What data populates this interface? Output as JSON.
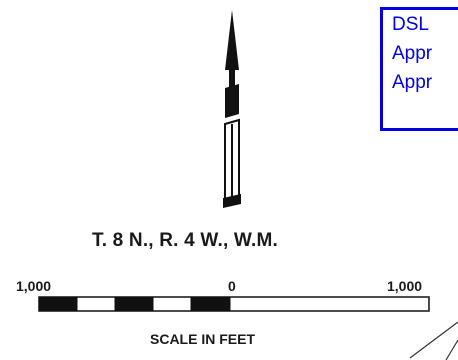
{
  "legend": {
    "lines": [
      "DSL",
      "Appr",
      "Appr"
    ],
    "border_color": "#0000e0",
    "text_color": "#0000e0"
  },
  "north_arrow": {
    "icon": "north-arrow-icon"
  },
  "township_label": "T. 8 N., R. 4 W., W.M.",
  "scale": {
    "left_label": "1,000",
    "center_label": "0",
    "right_label": "1,000",
    "units_label": "SCALE IN FEET"
  }
}
